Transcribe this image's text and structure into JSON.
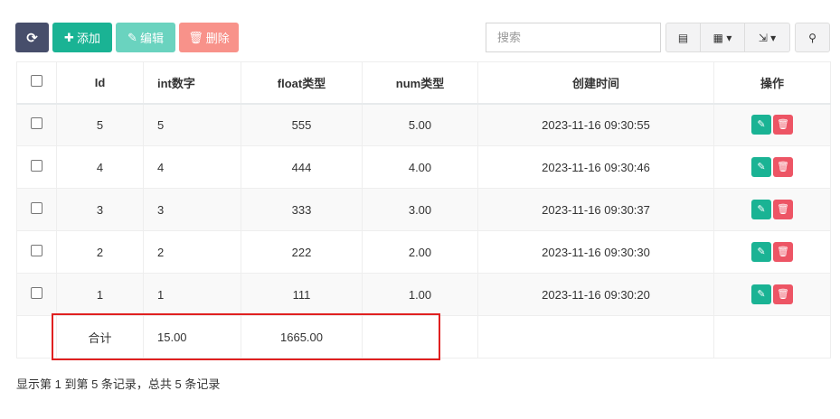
{
  "toolbar": {
    "refresh_icon": "refresh-icon",
    "add": "添加",
    "edit": "编辑",
    "delete": "删除",
    "search_placeholder": "搜索",
    "colors": {
      "refresh": "#474e6b",
      "add": "#1ab394",
      "edit": "#6ad3bf",
      "delete": "#f8928a"
    }
  },
  "table": {
    "headers": [
      "Id",
      "int数字",
      "float类型",
      "num类型",
      "创建时间",
      "操作"
    ],
    "rows": [
      {
        "id": "5",
        "int": "5",
        "float": "555",
        "num": "5.00",
        "time": "2023-11-16 09:30:55"
      },
      {
        "id": "4",
        "int": "4",
        "float": "444",
        "num": "4.00",
        "time": "2023-11-16 09:30:46"
      },
      {
        "id": "3",
        "int": "3",
        "float": "333",
        "num": "3.00",
        "time": "2023-11-16 09:30:37"
      },
      {
        "id": "2",
        "int": "2",
        "float": "222",
        "num": "2.00",
        "time": "2023-11-16 09:30:30"
      },
      {
        "id": "1",
        "int": "1",
        "float": "111",
        "num": "1.00",
        "time": "2023-11-16 09:30:20"
      }
    ],
    "footer": {
      "label": "合计",
      "int": "15.00",
      "float": "1665.00"
    }
  },
  "pagination": {
    "info": "显示第 1 到第 5 条记录，总共 5 条记录"
  }
}
